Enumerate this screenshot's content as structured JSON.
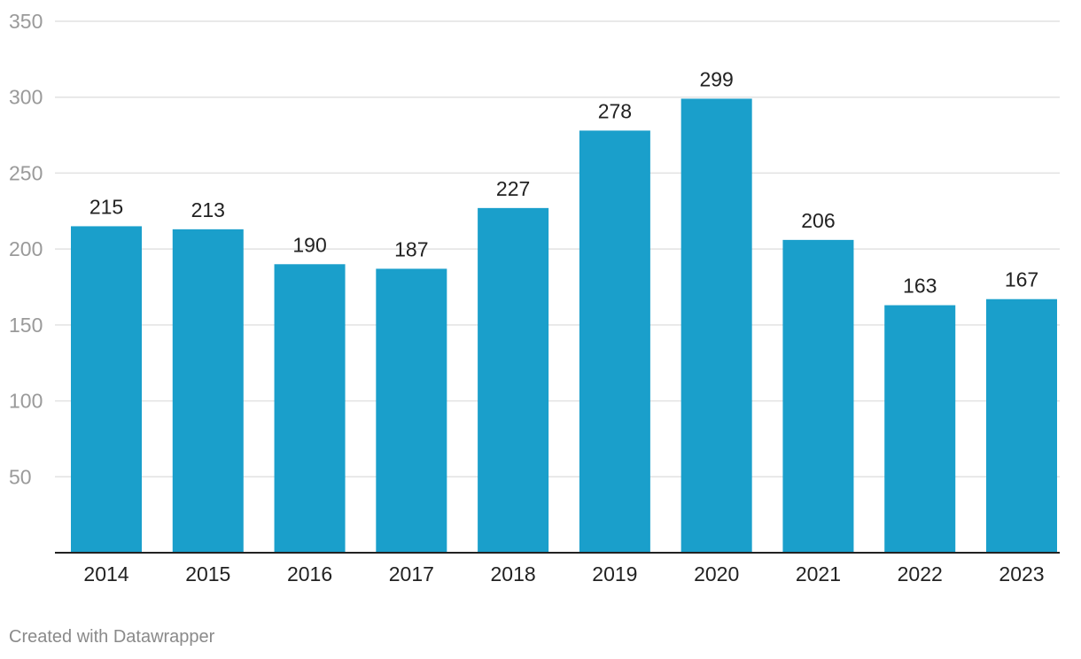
{
  "chart_data": {
    "type": "bar",
    "categories": [
      "2014",
      "2015",
      "2016",
      "2017",
      "2018",
      "2019",
      "2020",
      "2021",
      "2022",
      "2023"
    ],
    "values": [
      215,
      213,
      190,
      187,
      227,
      278,
      299,
      206,
      163,
      167
    ],
    "title": "",
    "xlabel": "",
    "ylabel": "",
    "ylim": [
      0,
      350
    ],
    "yticks": [
      50,
      100,
      150,
      200,
      250,
      300,
      350
    ],
    "grid": true,
    "legend": "none",
    "data_labels": true,
    "bar_color": "#1a9fcb"
  },
  "footer": {
    "credit": "Created with Datawrapper"
  }
}
